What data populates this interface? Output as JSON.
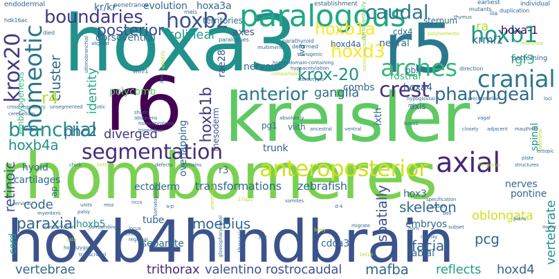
{
  "words": [
    {
      "text": "rhombomeres",
      "color": "#7ad151"
    },
    {
      "text": "hoxa3",
      "color": "#21918c"
    },
    {
      "text": "hoxb4hindbrain",
      "color": "#3b528b"
    },
    {
      "text": "kreisler",
      "color": "#5ec962"
    },
    {
      "text": "r5",
      "color": "#2a788e"
    },
    {
      "text": "r6",
      "color": "#440154"
    },
    {
      "text": "paralogous",
      "color": "#22a884"
    },
    {
      "text": "anteroposterior",
      "color": "#d0e11c"
    },
    {
      "text": "hoxb2",
      "color": "#3b528b"
    },
    {
      "text": "boundaries",
      "color": "#443983"
    },
    {
      "text": "homeotic",
      "color": "#2a788e"
    },
    {
      "text": "krox20",
      "color": "#443983"
    },
    {
      "text": "segmentation",
      "color": "#472d7b"
    },
    {
      "text": "branchial",
      "color": "#21918c"
    },
    {
      "text": "hoxb1",
      "color": "#1f9e89"
    },
    {
      "text": "caudal",
      "color": "#2a788e"
    },
    {
      "text": "arches",
      "color": "#35b779"
    },
    {
      "text": "krox-20",
      "color": "#21918c"
    },
    {
      "text": "hoxd3",
      "color": "#fde725"
    },
    {
      "text": "hoxb1a",
      "color": "#fde725"
    },
    {
      "text": "cranial",
      "color": "#2a788e"
    },
    {
      "text": "crest",
      "color": "#472d7b"
    },
    {
      "text": "pharyngeal",
      "color": "#31688e"
    },
    {
      "text": "axial",
      "color": "#482878"
    },
    {
      "text": "anterior",
      "color": "#2a788e"
    },
    {
      "text": "posterior",
      "color": "#3b528b"
    },
    {
      "text": "cluster",
      "color": "#31688e"
    },
    {
      "text": "r4",
      "color": "#b5de2b"
    },
    {
      "text": "hoxb1b",
      "color": "#443983"
    },
    {
      "text": "hoxb4a",
      "color": "#21918c"
    },
    {
      "text": "phc2",
      "color": "#31688e"
    },
    {
      "text": "diverged",
      "color": "#443983"
    },
    {
      "text": "identity",
      "color": "#22a884"
    },
    {
      "text": "colinear",
      "color": "#1f9e89"
    },
    {
      "text": "fgf3",
      "color": "#35b779"
    },
    {
      "text": "hoxa-1",
      "color": "#440154"
    },
    {
      "text": "krml1",
      "color": "#31688e"
    },
    {
      "text": "ra",
      "color": "#b5de2b"
    },
    {
      "text": "ganglia",
      "color": "#31688e"
    },
    {
      "text": "retinoic",
      "color": "#3b528b"
    },
    {
      "text": "code",
      "color": "#31688e"
    },
    {
      "text": "paraxial",
      "color": "#31688e"
    },
    {
      "text": "moebius",
      "color": "#31688e"
    },
    {
      "text": "spatially",
      "color": "#3b528b"
    },
    {
      "text": "vertebrate",
      "color": "#21918c"
    },
    {
      "text": "skeleton",
      "color": "#31688e"
    },
    {
      "text": "facial",
      "color": "#31688e"
    },
    {
      "text": "pcg",
      "color": "#31688e"
    },
    {
      "text": "vertebrae",
      "color": "#31688e"
    },
    {
      "text": "trithorax",
      "color": "#482878"
    },
    {
      "text": "valentino",
      "color": "#3b528b"
    },
    {
      "text": "rostrocaudal",
      "color": "#3b528b"
    },
    {
      "text": "mafba",
      "color": "#31688e"
    },
    {
      "text": "hoxd4",
      "color": "#31688e"
    },
    {
      "text": "oblongata",
      "color": "#d0e11c"
    },
    {
      "text": "reflects",
      "color": "#1f9e89"
    },
    {
      "text": "polycomb",
      "color": "#5ec962"
    },
    {
      "text": "evolution",
      "color": "#31688e"
    },
    {
      "text": "hoxa3a",
      "color": "#31688e"
    },
    {
      "text": "dorsoventral",
      "color": "#31688e"
    },
    {
      "text": "axes",
      "color": "#3b528b"
    },
    {
      "text": "territories",
      "color": "#31688e"
    },
    {
      "text": "neural",
      "color": "#31688e"
    },
    {
      "text": "rostral",
      "color": "#35b779"
    },
    {
      "text": "hoxa4",
      "color": "#31688e"
    },
    {
      "text": "combs",
      "color": "#31688e"
    },
    {
      "text": "nervous",
      "color": "#31688e"
    },
    {
      "text": "rae28",
      "color": "#3b528b"
    },
    {
      "text": "hoxd4a",
      "color": "#31688e"
    },
    {
      "text": "mesoderm",
      "color": "#3b528b"
    },
    {
      "text": "overlapping",
      "color": "#31688e"
    },
    {
      "text": "r3",
      "color": "#31688e"
    },
    {
      "text": "transformations",
      "color": "#31688e"
    },
    {
      "text": "zebrafish",
      "color": "#31688e"
    },
    {
      "text": "hyoid",
      "color": "#31688e"
    },
    {
      "text": "cartilages",
      "color": "#31688e"
    },
    {
      "text": "ectoderm",
      "color": "#31688e"
    },
    {
      "text": "trunk",
      "color": "#31688e"
    },
    {
      "text": "embryos",
      "color": "#31688e"
    },
    {
      "text": "hox3",
      "color": "#31688e"
    },
    {
      "text": "cdca3",
      "color": "#31688e"
    },
    {
      "text": "tube",
      "color": "#31688e"
    },
    {
      "text": "separate",
      "color": "#31688e"
    },
    {
      "text": "hoxb5",
      "color": "#21918c"
    },
    {
      "text": "cord",
      "color": "#1f9e89"
    },
    {
      "text": "labial",
      "color": "#31688e"
    },
    {
      "text": "nerves",
      "color": "#31688e"
    },
    {
      "text": "pontine",
      "color": "#31688e"
    },
    {
      "text": "spinal",
      "color": "#21918c"
    },
    {
      "text": "ixth",
      "color": "#31688e"
    },
    {
      "text": "viith",
      "color": "#31688e"
    },
    {
      "text": "pg1",
      "color": "#31688e"
    },
    {
      "text": "axis",
      "color": "#31688e"
    },
    {
      "text": "pbx",
      "color": "#31688e"
    },
    {
      "text": "cdx4",
      "color": "#31688e"
    },
    {
      "text": "sternum",
      "color": "#31688e"
    },
    {
      "text": "patterning",
      "color": "#31688e"
    },
    {
      "text": "ap",
      "color": "#31688e"
    },
    {
      "text": "iva",
      "color": "#31688e"
    },
    {
      "text": "embryogenesis",
      "color": "#35b779"
    },
    {
      "text": "kr/kr",
      "color": "#31688e"
    },
    {
      "text": "endodermal",
      "color": "#31688e"
    },
    {
      "text": "hdk16ac",
      "color": "#31688e"
    },
    {
      "text": "penetrance",
      "color": "#31688e"
    },
    {
      "text": "meis",
      "color": "#31688e"
    },
    {
      "text": "establishment",
      "color": "#31688e"
    },
    {
      "text": "dorsoventrally",
      "color": "#5ec962"
    },
    {
      "text": "earliest",
      "color": "#31688e"
    },
    {
      "text": "individual",
      "color": "#31688e"
    },
    {
      "text": "mutants",
      "color": "#31688e"
    },
    {
      "text": "duplication",
      "color": "#31688e"
    },
    {
      "text": "iiia",
      "color": "#31688e"
    },
    {
      "text": "restricted",
      "color": "#b5de2b"
    },
    {
      "text": "thymus",
      "color": "#31688e"
    },
    {
      "text": "polyhomeotic",
      "color": "#b5de2b"
    },
    {
      "text": "nonoverlapping",
      "color": "#b5de2b"
    },
    {
      "text": "direction",
      "color": "#31688e"
    },
    {
      "text": "parathyroid",
      "color": "#31688e"
    },
    {
      "text": "deformed",
      "color": "#31688e"
    },
    {
      "text": "hypoacetylation",
      "color": "#31688e"
    },
    {
      "text": "homeodomain-containing",
      "color": "#31688e"
    },
    {
      "text": "multimeric",
      "color": "#31688e"
    },
    {
      "text": "paralogues",
      "color": "#31688e"
    },
    {
      "text": "died",
      "color": "#31688e"
    },
    {
      "text": "enteric",
      "color": "#b5de2b"
    },
    {
      "text": "ultimobranchial",
      "color": "#31688e"
    },
    {
      "text": "aligned",
      "color": "#31688e"
    },
    {
      "text": "vhnf1",
      "color": "#31688e"
    },
    {
      "text": "dev",
      "color": "#31688e"
    },
    {
      "text": "unsegmented",
      "color": "#31688e"
    },
    {
      "text": "otic",
      "color": "#31688e"
    },
    {
      "text": "cross-regulatory",
      "color": "#31688e"
    },
    {
      "text": "cerebellum",
      "color": "#31688e"
    },
    {
      "text": "shark",
      "color": "#31688e"
    },
    {
      "text": "abducens",
      "color": "#31688e"
    },
    {
      "text": "homeoproteins",
      "color": "#31688e"
    },
    {
      "text": "trigeminal",
      "color": "#31688e"
    },
    {
      "text": "comparisons",
      "color": "#b5de2b"
    },
    {
      "text": "hypoglossal",
      "color": "#31688e"
    },
    {
      "text": "mll",
      "color": "#31688e"
    },
    {
      "text": "precerebellar",
      "color": "#31688e"
    },
    {
      "text": "vagal",
      "color": "#31688e"
    },
    {
      "text": "loci",
      "color": "#31688e"
    },
    {
      "text": "mauthner",
      "color": "#31688e"
    },
    {
      "text": "stereotypic",
      "color": "#31688e"
    },
    {
      "text": "absolutely",
      "color": "#31688e"
    },
    {
      "text": "ancestral",
      "color": "#31688e"
    },
    {
      "text": "ventral",
      "color": "#31688e"
    },
    {
      "text": "closely",
      "color": "#31688e"
    },
    {
      "text": "adjacent",
      "color": "#31688e"
    },
    {
      "text": "hoxa2",
      "color": "#31688e"
    },
    {
      "text": "positional",
      "color": "#b5de2b"
    },
    {
      "text": "ectopic",
      "color": "#31688e"
    },
    {
      "text": "plate",
      "color": "#31688e"
    },
    {
      "text": "structures",
      "color": "#31688e"
    },
    {
      "text": "chick",
      "color": "#31688e"
    },
    {
      "text": "birth",
      "color": "#b5de2b"
    },
    {
      "text": "defects",
      "color": "#31688e"
    },
    {
      "text": "domains",
      "color": "#31688e"
    },
    {
      "text": "fin-group",
      "color": "#b5de2b"
    },
    {
      "text": "cervical",
      "color": "#31688e"
    },
    {
      "text": "myenteric",
      "color": "#31688e"
    },
    {
      "text": "units",
      "color": "#31688e"
    },
    {
      "text": "palsy",
      "color": "#31688e"
    },
    {
      "text": "moz",
      "color": "#31688e"
    },
    {
      "text": "nccs",
      "color": "#31688e"
    },
    {
      "text": "somatopoiesis",
      "color": "#31688e"
    },
    {
      "text": "a-p",
      "color": "#31688e"
    },
    {
      "text": "orientation",
      "color": "#b5de2b"
    },
    {
      "text": "17q21",
      "color": "#b5de2b"
    },
    {
      "text": "somites",
      "color": "#31688e"
    },
    {
      "text": "d-4",
      "color": "#31688e"
    },
    {
      "text": "specification",
      "color": "#31688e"
    },
    {
      "text": "pouch",
      "color": "#31688e"
    },
    {
      "text": "bell",
      "color": "#31688e"
    },
    {
      "text": "plans",
      "color": "#31688e"
    },
    {
      "text": "conservation",
      "color": "#31688e"
    },
    {
      "text": "surrounding",
      "color": "#31688e"
    },
    {
      "text": "locus",
      "color": "#31688e"
    },
    {
      "text": "motor",
      "color": "#31688e"
    },
    {
      "text": "throat",
      "color": "#31688e"
    },
    {
      "text": "glossopharyngeal",
      "color": "#31688e"
    },
    {
      "text": "migrate",
      "color": "#31688e"
    },
    {
      "text": "horn",
      "color": "#31688e"
    },
    {
      "text": "subset",
      "color": "#31688e"
    },
    {
      "text": "jaw",
      "color": "#31688e"
    },
    {
      "text": "body",
      "color": "#b5de2b"
    },
    {
      "text": "display",
      "color": "#31688e"
    },
    {
      "text": "asta",
      "color": "#b5de2b"
    },
    {
      "text": "homozygous",
      "color": "#31688e"
    },
    {
      "text": "transcribed",
      "color": "#31688e"
    },
    {
      "text": "regional",
      "color": "#31688e"
    },
    {
      "text": "bel16",
      "color": "#b5de2b"
    },
    {
      "text": "transgenic",
      "color": "#31688e"
    },
    {
      "text": "thoracic",
      "color": "#31688e"
    }
  ]
}
